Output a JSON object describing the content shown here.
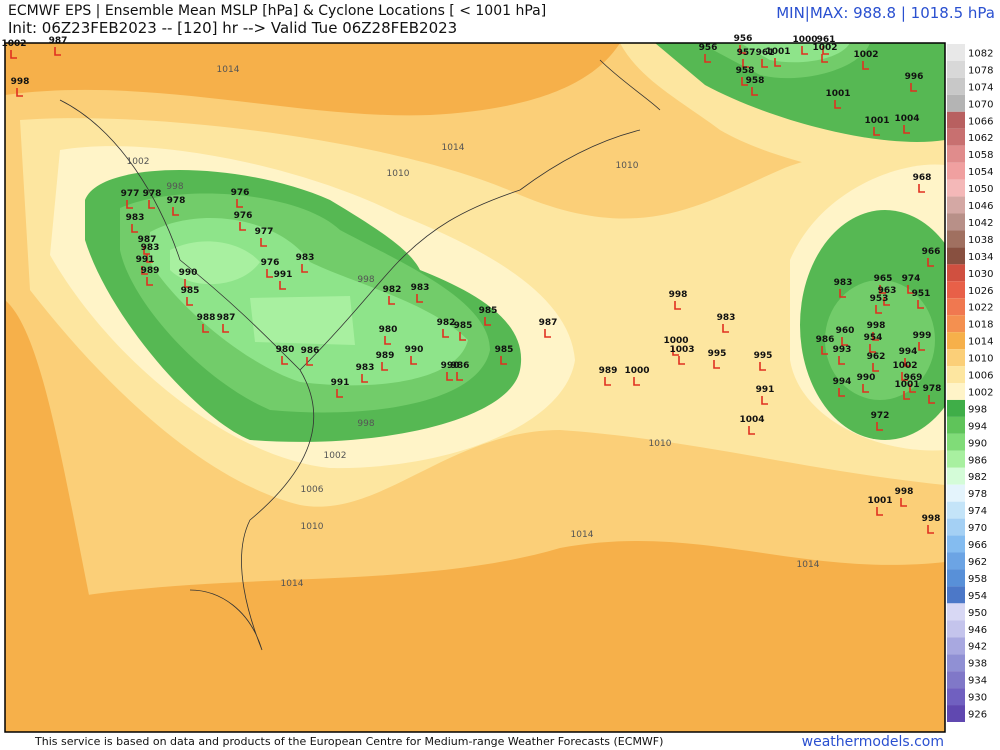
{
  "header": {
    "title": "ECMWF EPS | Ensemble Mean MSLP [hPa] & Cyclone Locations [ < 1001 hPa]",
    "init": "Init: 06Z23FEB2023 -- [120] hr --> Valid Tue 06Z28FEB2023",
    "minmax": "MIN|MAX: 988.8 | 1018.5 hPa"
  },
  "colorbar": {
    "labels": [
      1082,
      1078,
      1074,
      1070,
      1066,
      1062,
      1058,
      1054,
      1050,
      1046,
      1042,
      1038,
      1034,
      1030,
      1026,
      1022,
      1018,
      1014,
      1010,
      1006,
      1002,
      998,
      994,
      990,
      986,
      982,
      978,
      974,
      970,
      966,
      962,
      958,
      954,
      950,
      946,
      942,
      938,
      934,
      930,
      926
    ]
  },
  "contour_labels": [
    "1014",
    "1010",
    "1002",
    "1014",
    "1010",
    "998",
    "998",
    "998",
    "1002",
    "1006",
    "1010",
    "1014",
    "1014",
    "1014",
    "1010"
  ],
  "cyclones": [
    "1002",
    "987",
    "998",
    "977",
    "978",
    "978",
    "976",
    "976",
    "977",
    "983",
    "987",
    "983",
    "991",
    "989",
    "990",
    "985",
    "988",
    "987",
    "983",
    "976",
    "991",
    "982",
    "983",
    "982",
    "985",
    "985",
    "985",
    "987",
    "990",
    "990",
    "986",
    "980",
    "983",
    "989",
    "991",
    "980",
    "986",
    "998",
    "983",
    "1000",
    "1003",
    "995",
    "995",
    "989",
    "1000",
    "991",
    "1004",
    "1001",
    "998",
    "998",
    "956",
    "956",
    "957",
    "1001",
    "1000",
    "961",
    "1002",
    "1002",
    "996",
    "958",
    "958",
    "1001",
    "1001",
    "1004",
    "968",
    "966",
    "983",
    "965",
    "974",
    "963",
    "953",
    "951",
    "960",
    "998",
    "954",
    "999",
    "986",
    "993",
    "962",
    "994",
    "1002",
    "994",
    "990",
    "969",
    "1001",
    "978",
    "972",
    "961"
  ],
  "footer": {
    "credit": "This service is based on data and products of the European Centre for Medium-range Weather Forecasts (ECMWF)",
    "site": "weathermodels.com"
  }
}
